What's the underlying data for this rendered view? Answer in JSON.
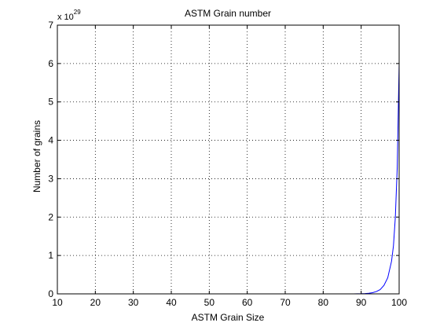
{
  "chart_data": {
    "type": "line",
    "title": "ASTM Grain number",
    "xlabel": "ASTM Grain Size",
    "ylabel": "Number of grains",
    "xlim": [
      10,
      100
    ],
    "ylim": [
      0,
      7
    ],
    "y_exponent_prefix": "x 10",
    "y_exponent": "29",
    "x_ticks": [
      10,
      20,
      30,
      40,
      50,
      60,
      70,
      80,
      90,
      100
    ],
    "y_ticks": [
      0,
      1,
      2,
      3,
      4,
      5,
      6,
      7
    ],
    "grid": true,
    "line_color": "#0000ff",
    "series": [
      {
        "x": [
          46,
          50,
          60,
          70,
          80,
          85,
          88,
          90,
          91,
          92,
          93,
          94,
          95,
          96,
          97,
          98,
          98.5,
          99,
          99.5,
          100
        ],
        "y": [
          0,
          0,
          0,
          0,
          0,
          0.0001,
          0.001,
          0.004,
          0.008,
          0.016,
          0.03,
          0.06,
          0.11,
          0.22,
          0.42,
          0.85,
          1.25,
          2.0,
          3.3,
          6.0
        ]
      }
    ]
  }
}
